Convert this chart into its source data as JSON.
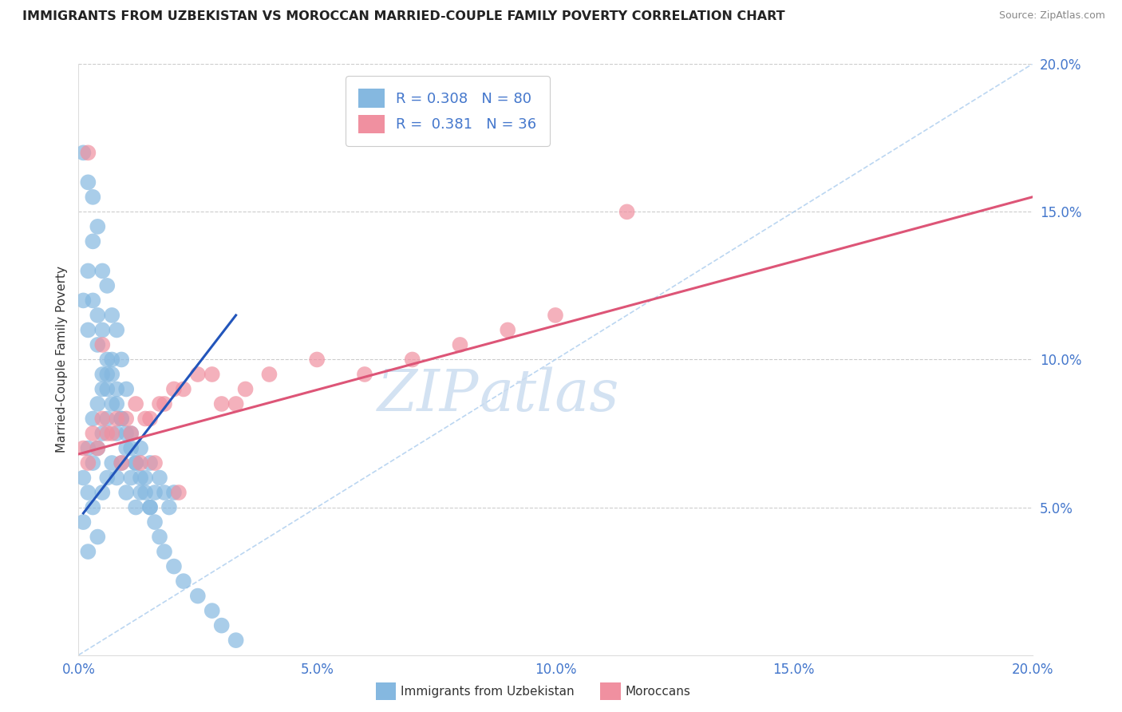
{
  "title": "IMMIGRANTS FROM UZBEKISTAN VS MOROCCAN MARRIED-COUPLE FAMILY POVERTY CORRELATION CHART",
  "source": "Source: ZipAtlas.com",
  "ylabel": "Married-Couple Family Poverty",
  "xlim": [
    0.0,
    0.2
  ],
  "ylim": [
    0.0,
    0.2
  ],
  "xticks": [
    0.0,
    0.05,
    0.1,
    0.15,
    0.2
  ],
  "yticks": [
    0.05,
    0.1,
    0.15,
    0.2
  ],
  "xticklabels": [
    "0.0%",
    "5.0%",
    "10.0%",
    "15.0%",
    "20.0%"
  ],
  "yticklabels": [
    "5.0%",
    "10.0%",
    "15.0%",
    "20.0%"
  ],
  "legend_R_blue": "0.308",
  "legend_N_blue": "80",
  "legend_R_pink": "0.381",
  "legend_N_pink": "36",
  "color_blue": "#85b8e0",
  "color_pink": "#f090a0",
  "color_line_blue": "#2255bb",
  "color_line_pink": "#dd5577",
  "color_axis_text": "#4477cc",
  "watermark_color": "#ccddf0",
  "blue_x": [
    0.001,
    0.001,
    0.002,
    0.002,
    0.002,
    0.003,
    0.003,
    0.003,
    0.004,
    0.004,
    0.004,
    0.005,
    0.005,
    0.005,
    0.006,
    0.006,
    0.006,
    0.007,
    0.007,
    0.007,
    0.008,
    0.008,
    0.009,
    0.009,
    0.01,
    0.01,
    0.011,
    0.011,
    0.012,
    0.012,
    0.013,
    0.013,
    0.014,
    0.015,
    0.015,
    0.016,
    0.017,
    0.018,
    0.019,
    0.02,
    0.001,
    0.002,
    0.002,
    0.003,
    0.003,
    0.004,
    0.004,
    0.005,
    0.005,
    0.006,
    0.006,
    0.007,
    0.008,
    0.008,
    0.009,
    0.01,
    0.011,
    0.012,
    0.013,
    0.014,
    0.015,
    0.016,
    0.017,
    0.018,
    0.02,
    0.022,
    0.025,
    0.028,
    0.03,
    0.033,
    0.001,
    0.002,
    0.003,
    0.004,
    0.005,
    0.006,
    0.007,
    0.008,
    0.009,
    0.01
  ],
  "blue_y": [
    0.06,
    0.045,
    0.07,
    0.055,
    0.035,
    0.08,
    0.065,
    0.05,
    0.085,
    0.07,
    0.04,
    0.09,
    0.075,
    0.055,
    0.095,
    0.08,
    0.06,
    0.1,
    0.085,
    0.065,
    0.075,
    0.06,
    0.08,
    0.065,
    0.07,
    0.055,
    0.075,
    0.06,
    0.065,
    0.05,
    0.07,
    0.055,
    0.06,
    0.065,
    0.05,
    0.055,
    0.06,
    0.055,
    0.05,
    0.055,
    0.12,
    0.11,
    0.13,
    0.12,
    0.14,
    0.115,
    0.105,
    0.11,
    0.095,
    0.1,
    0.09,
    0.095,
    0.085,
    0.09,
    0.08,
    0.075,
    0.07,
    0.065,
    0.06,
    0.055,
    0.05,
    0.045,
    0.04,
    0.035,
    0.03,
    0.025,
    0.02,
    0.015,
    0.01,
    0.005,
    0.17,
    0.16,
    0.155,
    0.145,
    0.13,
    0.125,
    0.115,
    0.11,
    0.1,
    0.09
  ],
  "pink_x": [
    0.001,
    0.003,
    0.005,
    0.007,
    0.01,
    0.012,
    0.015,
    0.018,
    0.02,
    0.025,
    0.03,
    0.035,
    0.04,
    0.05,
    0.06,
    0.07,
    0.08,
    0.09,
    0.1,
    0.115,
    0.002,
    0.004,
    0.006,
    0.008,
    0.011,
    0.014,
    0.017,
    0.022,
    0.028,
    0.033,
    0.002,
    0.005,
    0.009,
    0.013,
    0.016,
    0.021
  ],
  "pink_y": [
    0.07,
    0.075,
    0.08,
    0.075,
    0.08,
    0.085,
    0.08,
    0.085,
    0.09,
    0.095,
    0.085,
    0.09,
    0.095,
    0.1,
    0.095,
    0.1,
    0.105,
    0.11,
    0.115,
    0.15,
    0.065,
    0.07,
    0.075,
    0.08,
    0.075,
    0.08,
    0.085,
    0.09,
    0.095,
    0.085,
    0.17,
    0.105,
    0.065,
    0.065,
    0.065,
    0.055
  ],
  "blue_trend_x": [
    0.001,
    0.033
  ],
  "blue_trend_y": [
    0.048,
    0.115
  ],
  "pink_trend_x": [
    0.0,
    0.2
  ],
  "pink_trend_y": [
    0.068,
    0.155
  ]
}
